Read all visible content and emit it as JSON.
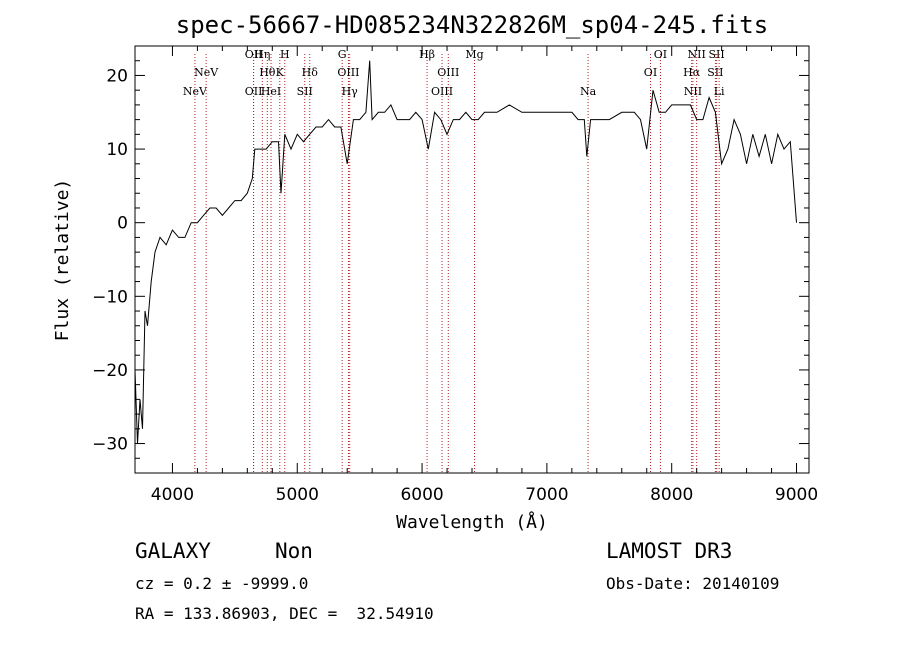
{
  "chart_data": {
    "type": "line",
    "title": "spec-56667-HD085234N322826M_sp04-245.fits",
    "xlabel": "Wavelength (Å)",
    "ylabel": "Flux (relative)",
    "xlim": [
      3700,
      9100
    ],
    "ylim": [
      -34,
      24
    ],
    "xticks": [
      4000,
      5000,
      6000,
      7000,
      8000,
      9000
    ],
    "yticks": [
      -30,
      -20,
      -10,
      0,
      10,
      20
    ],
    "grid": false,
    "series": [
      {
        "x": [
          3700,
          3720,
          3740,
          3760,
          3780,
          3800,
          3830,
          3860,
          3900,
          3950,
          4000,
          4050,
          4100,
          4150,
          4200,
          4250,
          4300,
          4350,
          4400,
          4450,
          4500,
          4550,
          4600,
          4640,
          4660,
          4700,
          4750,
          4800,
          4850,
          4870,
          4900,
          4950,
          5000,
          5050,
          5100,
          5150,
          5200,
          5250,
          5300,
          5350,
          5400,
          5450,
          5500,
          5550,
          5580,
          5600,
          5650,
          5700,
          5750,
          5800,
          5850,
          5900,
          5950,
          6000,
          6050,
          6100,
          6150,
          6200,
          6250,
          6300,
          6350,
          6400,
          6450,
          6500,
          6600,
          6700,
          6800,
          6900,
          7000,
          7100,
          7200,
          7250,
          7300,
          7320,
          7350,
          7400,
          7500,
          7600,
          7700,
          7750,
          7800,
          7850,
          7900,
          7950,
          8000,
          8050,
          8100,
          8150,
          8200,
          8250,
          8300,
          8350,
          8400,
          8450,
          8500,
          8550,
          8600,
          8650,
          8700,
          8750,
          8800,
          8850,
          8900,
          8950,
          9000
        ],
        "y": [
          -20,
          -30,
          -24,
          -28,
          -12,
          -14,
          -8,
          -4,
          -2,
          -3,
          -1,
          -2,
          -2,
          0,
          0,
          1,
          2,
          2,
          1,
          2,
          3,
          3,
          4,
          6,
          10,
          10,
          10,
          11,
          11,
          4,
          12,
          10,
          12,
          11,
          12,
          13,
          13,
          14,
          13,
          13,
          8,
          14,
          14,
          15,
          22,
          14,
          15,
          15,
          16,
          14,
          14,
          14,
          15,
          14,
          10,
          15,
          14,
          12,
          14,
          14,
          15,
          14,
          14,
          15,
          15,
          16,
          15,
          15,
          15,
          15,
          15,
          14,
          14,
          9,
          14,
          14,
          14,
          15,
          15,
          14,
          10,
          18,
          15,
          15,
          16,
          16,
          16,
          16,
          14,
          14,
          17,
          15,
          8,
          10,
          14,
          12,
          8,
          12,
          9,
          12,
          8,
          12,
          10,
          11,
          0
        ]
      }
    ],
    "lines": [
      {
        "name": "NeV",
        "x": 4180,
        "level": 2
      },
      {
        "name": "NeV",
        "x": 4270,
        "level": 1
      },
      {
        "name": "OII",
        "x": 4650,
        "level": 0
      },
      {
        "name": "OII",
        "x": 4650,
        "level": 2
      },
      {
        "name": "Hη",
        "x": 4720,
        "level": 0
      },
      {
        "name": "Hθ",
        "x": 4760,
        "level": 1
      },
      {
        "name": "HeI",
        "x": 4790,
        "level": 2
      },
      {
        "name": "K",
        "x": 4860,
        "level": 1
      },
      {
        "name": "H",
        "x": 4900,
        "level": 0
      },
      {
        "name": "SII",
        "x": 5060,
        "level": 2
      },
      {
        "name": "Hδ",
        "x": 5100,
        "level": 1
      },
      {
        "name": "G",
        "x": 5360,
        "level": 0
      },
      {
        "name": "OIII",
        "x": 5410,
        "level": 1
      },
      {
        "name": "Hγ",
        "x": 5420,
        "level": 2
      },
      {
        "name": "Hβ",
        "x": 6040,
        "level": 0
      },
      {
        "name": "OIII",
        "x": 6160,
        "level": 2
      },
      {
        "name": "OIII",
        "x": 6210,
        "level": 1
      },
      {
        "name": "Mg",
        "x": 6420,
        "level": 0
      },
      {
        "name": "Na",
        "x": 7330,
        "level": 2
      },
      {
        "name": "OI",
        "x": 7830,
        "level": 1
      },
      {
        "name": "OI",
        "x": 7910,
        "level": 0
      },
      {
        "name": "Hα",
        "x": 8160,
        "level": 1
      },
      {
        "name": "NII",
        "x": 8170,
        "level": 2
      },
      {
        "name": "NII",
        "x": 8200,
        "level": 0
      },
      {
        "name": "SII",
        "x": 8350,
        "level": 1
      },
      {
        "name": "SII",
        "x": 8360,
        "level": 0
      },
      {
        "name": "Li",
        "x": 8380,
        "level": 2
      }
    ],
    "colors": {
      "spectrum": "#000000",
      "lines": "#b22222"
    }
  },
  "info": {
    "class": "GALAXY",
    "subclass": "Non",
    "survey": "LAMOST DR3",
    "cz": "cz = 0.2 ± -9999.0",
    "obsdate": "Obs-Date: 20140109",
    "radec": "RA = 133.86903, DEC =  32.54910"
  }
}
